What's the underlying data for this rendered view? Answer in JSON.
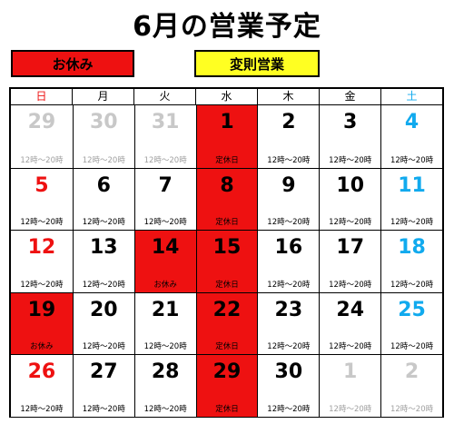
{
  "title": "6月の営業予定",
  "legend": {
    "holiday": {
      "label": "お休み",
      "color": "#ee1111"
    },
    "irregular": {
      "label": "変則営業",
      "color": "#ffff22"
    }
  },
  "weekdays": [
    "日",
    "月",
    "火",
    "水",
    "木",
    "金",
    "土"
  ],
  "weeks": [
    [
      {
        "day": "29",
        "note": "12時～20時",
        "other_month": true
      },
      {
        "day": "30",
        "note": "12時～20時",
        "other_month": true
      },
      {
        "day": "31",
        "note": "12時～20時",
        "other_month": true
      },
      {
        "day": "1",
        "note": "定休日",
        "off": true
      },
      {
        "day": "2",
        "note": "12時～20時"
      },
      {
        "day": "3",
        "note": "12時～20時"
      },
      {
        "day": "4",
        "note": "12時～20時"
      }
    ],
    [
      {
        "day": "5",
        "note": "12時～20時"
      },
      {
        "day": "6",
        "note": "12時～20時"
      },
      {
        "day": "7",
        "note": "12時～20時"
      },
      {
        "day": "8",
        "note": "定休日",
        "off": true
      },
      {
        "day": "9",
        "note": "12時～20時"
      },
      {
        "day": "10",
        "note": "12時～20時"
      },
      {
        "day": "11",
        "note": "12時～20時"
      }
    ],
    [
      {
        "day": "12",
        "note": "12時～20時"
      },
      {
        "day": "13",
        "note": "12時～20時"
      },
      {
        "day": "14",
        "note": "お休み",
        "off": true
      },
      {
        "day": "15",
        "note": "定休日",
        "off": true
      },
      {
        "day": "16",
        "note": "12時～20時"
      },
      {
        "day": "17",
        "note": "12時～20時"
      },
      {
        "day": "18",
        "note": "12時～20時"
      }
    ],
    [
      {
        "day": "19",
        "note": "お休み",
        "off": true
      },
      {
        "day": "20",
        "note": "12時～20時"
      },
      {
        "day": "21",
        "note": "12時～20時"
      },
      {
        "day": "22",
        "note": "定休日",
        "off": true
      },
      {
        "day": "23",
        "note": "12時～20時"
      },
      {
        "day": "24",
        "note": "12時～20時"
      },
      {
        "day": "25",
        "note": "12時～20時"
      }
    ],
    [
      {
        "day": "26",
        "note": "12時～20時"
      },
      {
        "day": "27",
        "note": "12時～20時"
      },
      {
        "day": "28",
        "note": "12時～20時"
      },
      {
        "day": "29",
        "note": "定休日",
        "off": true
      },
      {
        "day": "30",
        "note": "12時～20時"
      },
      {
        "day": "1",
        "note": "12時～20時",
        "other_month": true
      },
      {
        "day": "2",
        "note": "12時～20時",
        "other_month": true
      }
    ]
  ],
  "colors": {
    "sunday": "#ee1111",
    "saturday": "#11aaee",
    "other_month": "#c8c8c8"
  }
}
